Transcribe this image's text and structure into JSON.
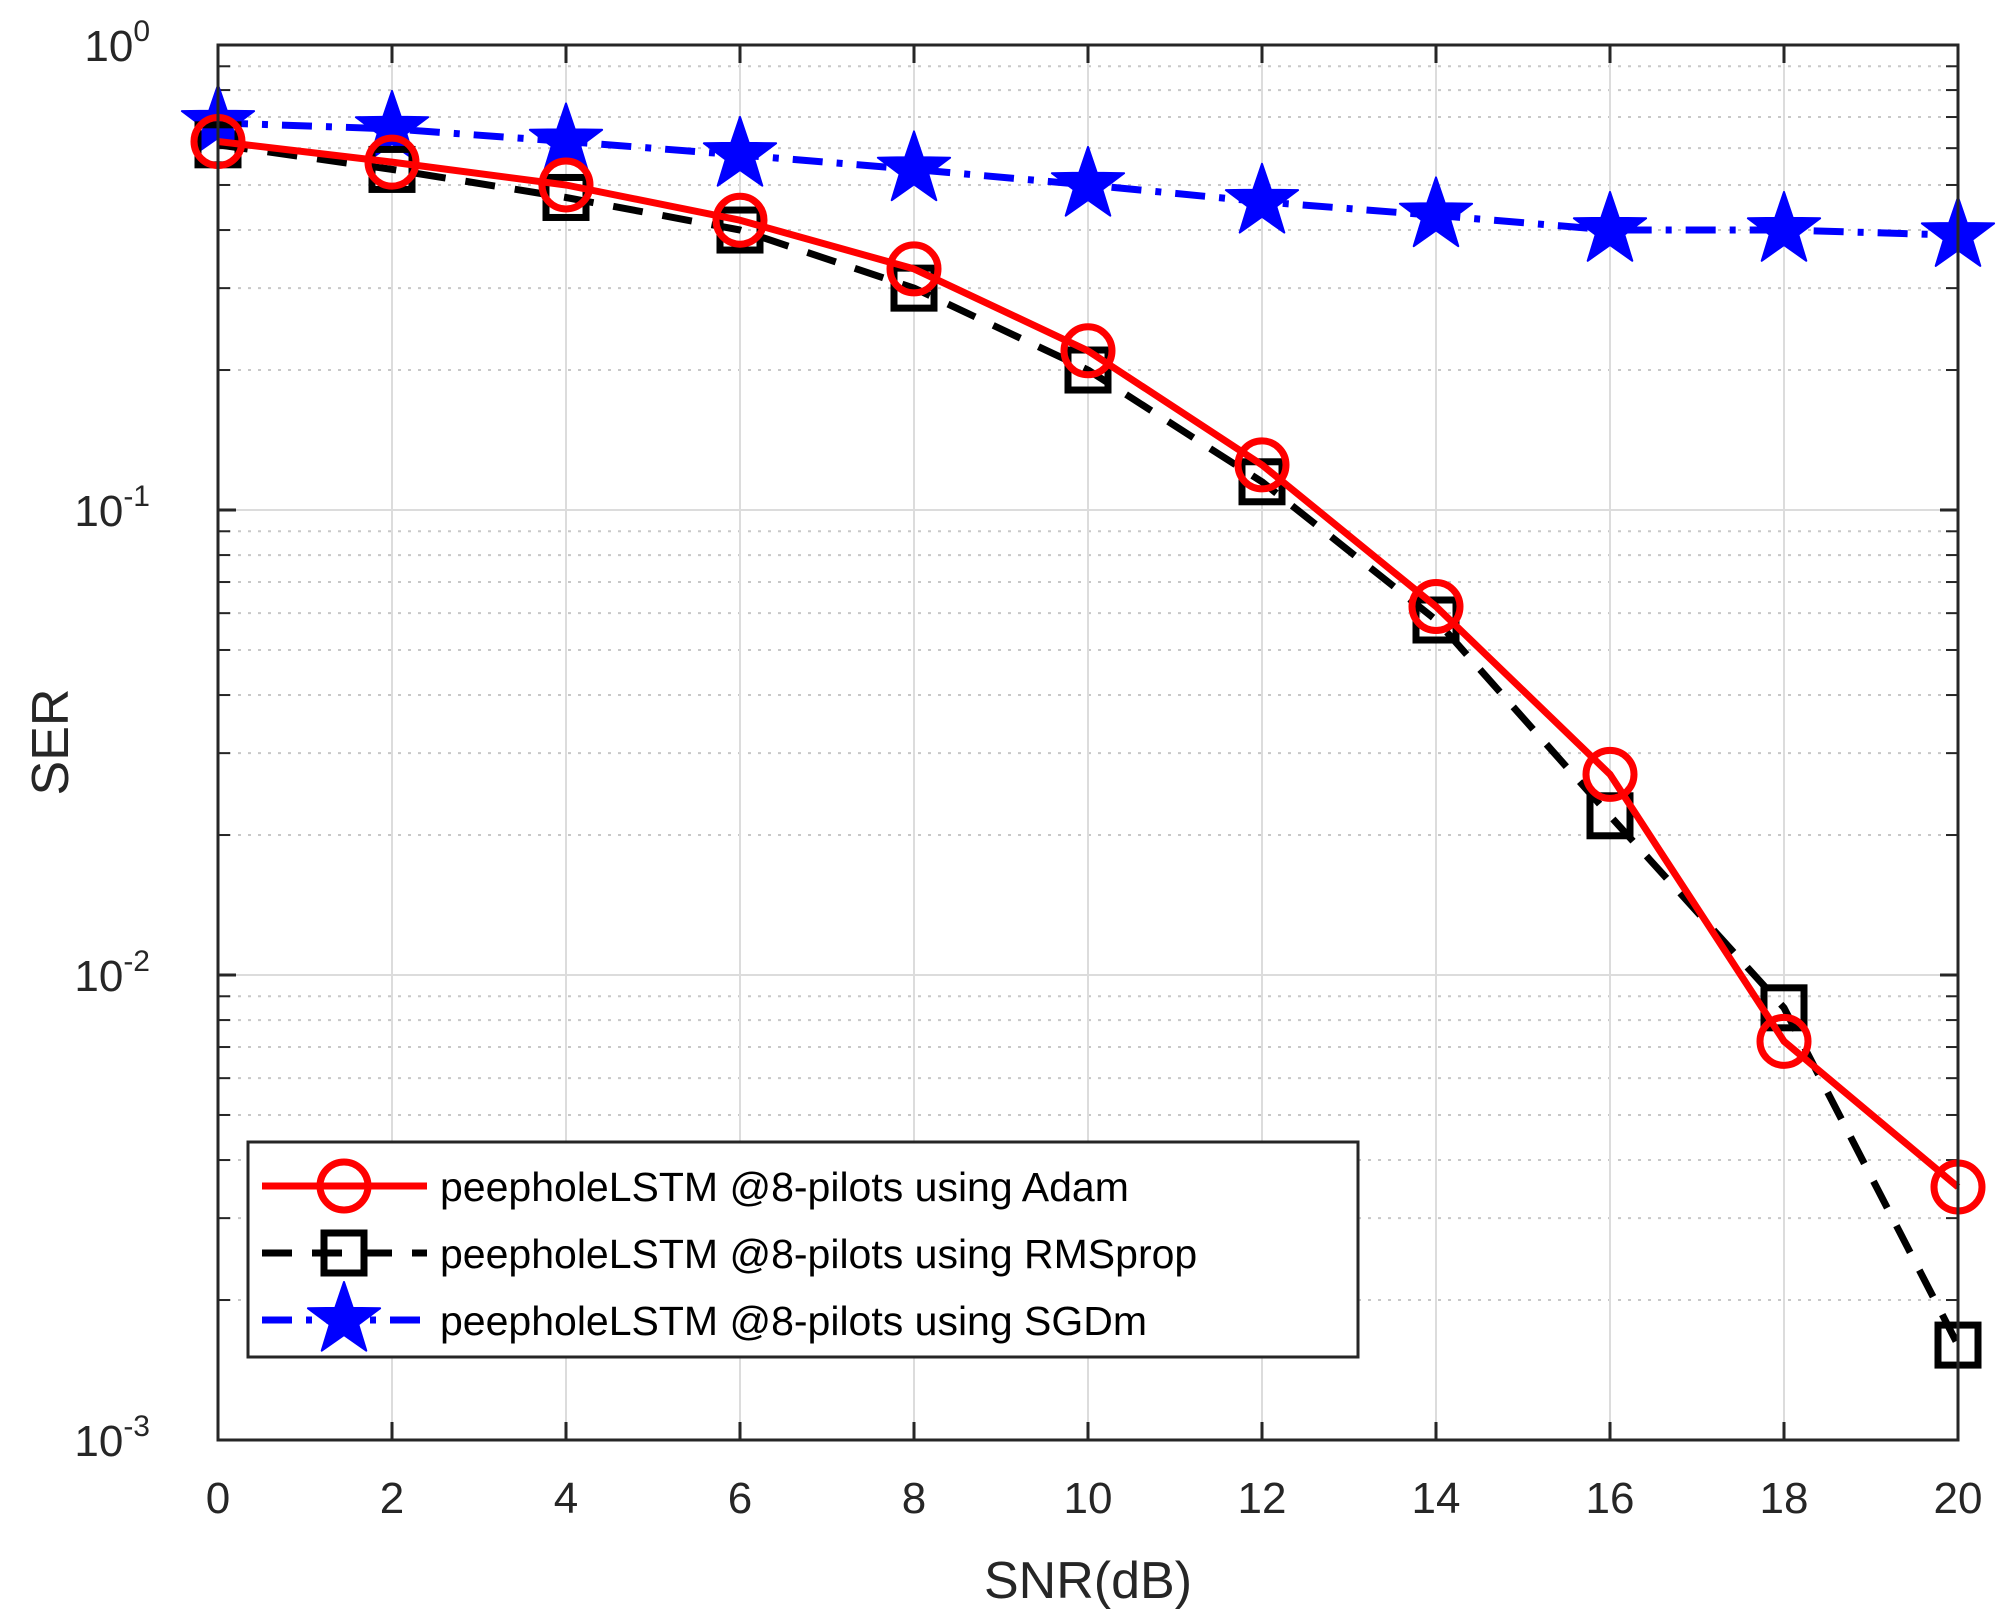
{
  "chart_data": {
    "type": "line",
    "title": "",
    "xlabel": "SNR(dB)",
    "ylabel": "SER",
    "x": [
      0,
      2,
      4,
      6,
      8,
      10,
      12,
      14,
      16,
      18,
      20
    ],
    "xlim": [
      0,
      20
    ],
    "ylim": [
      0.001,
      1
    ],
    "yscale": "log",
    "grid": true,
    "x_ticks": [
      "0",
      "2",
      "4",
      "6",
      "8",
      "10",
      "12",
      "14",
      "16",
      "18",
      "20"
    ],
    "y_ticks": [
      {
        "value": 1,
        "base": "10",
        "exp": "0"
      },
      {
        "value": 0.1,
        "base": "10",
        "exp": "-1"
      },
      {
        "value": 0.01,
        "base": "10",
        "exp": "-2"
      },
      {
        "value": 0.001,
        "base": "10",
        "exp": "-3"
      }
    ],
    "legend_position": "bottom-left",
    "series": [
      {
        "name": "peepholeLSTM @8-pilots using Adam",
        "color": "#ff0000",
        "marker": "circle",
        "line": "solid",
        "values": [
          0.62,
          0.56,
          0.5,
          0.42,
          0.33,
          0.22,
          0.125,
          0.062,
          0.027,
          0.0072,
          0.0035
        ]
      },
      {
        "name": "peepholeLSTM @8-pilots using RMSprop",
        "color": "#000000",
        "marker": "square",
        "line": "dashed",
        "values": [
          0.61,
          0.54,
          0.47,
          0.4,
          0.3,
          0.2,
          0.115,
          0.058,
          0.022,
          0.0085,
          0.0016
        ]
      },
      {
        "name": "peepholeLSTM @8-pilots using SGDm",
        "color": "#0000ff",
        "marker": "star",
        "line": "dashdot",
        "values": [
          0.68,
          0.66,
          0.62,
          0.58,
          0.54,
          0.5,
          0.46,
          0.43,
          0.4,
          0.4,
          0.39
        ]
      }
    ]
  }
}
